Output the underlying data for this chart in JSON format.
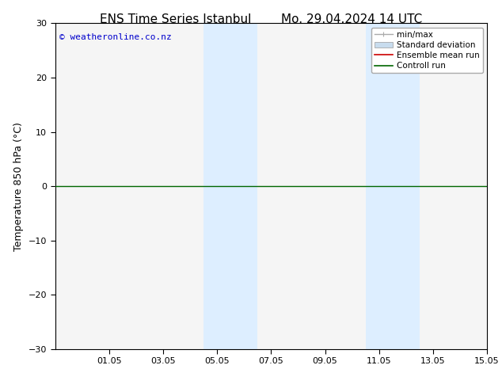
{
  "title_left": "ENS Time Series Istanbul",
  "title_right": "Mo. 29.04.2024 14 UTC",
  "ylabel": "Temperature 850 hPa (°C)",
  "ylim": [
    -30,
    30
  ],
  "yticks": [
    -30,
    -20,
    -10,
    0,
    10,
    20,
    30
  ],
  "xlim": [
    0,
    16
  ],
  "xtick_labels": [
    "01.05",
    "03.05",
    "05.05",
    "07.05",
    "09.05",
    "11.05",
    "13.05",
    "15.05"
  ],
  "xtick_positions": [
    2,
    4,
    6,
    8,
    10,
    12,
    14,
    16
  ],
  "shaded_bands": [
    {
      "x_start": 5.5,
      "x_end": 7.5
    },
    {
      "x_start": 11.5,
      "x_end": 13.5
    }
  ],
  "shaded_color": "#ddeeff",
  "shaded_alpha": 1.0,
  "zero_line_color": "#006600",
  "zero_line_y": 0,
  "background_color": "#ffffff",
  "plot_bg_color": "#f5f5f5",
  "border_color": "#000000",
  "watermark_text": "© weatheronline.co.nz",
  "watermark_color": "#0000cc",
  "legend_items": [
    {
      "label": "min/max",
      "color": "#aaaaaa",
      "lw": 1.0
    },
    {
      "label": "Standard deviation",
      "color": "#c8dcee",
      "lw": 6
    },
    {
      "label": "Ensemble mean run",
      "color": "#cc0000",
      "lw": 1.2
    },
    {
      "label": "Controll run",
      "color": "#006600",
      "lw": 1.2
    }
  ],
  "title_fontsize": 11,
  "tick_fontsize": 8,
  "ylabel_fontsize": 9,
  "watermark_fontsize": 8,
  "legend_fontsize": 7.5
}
